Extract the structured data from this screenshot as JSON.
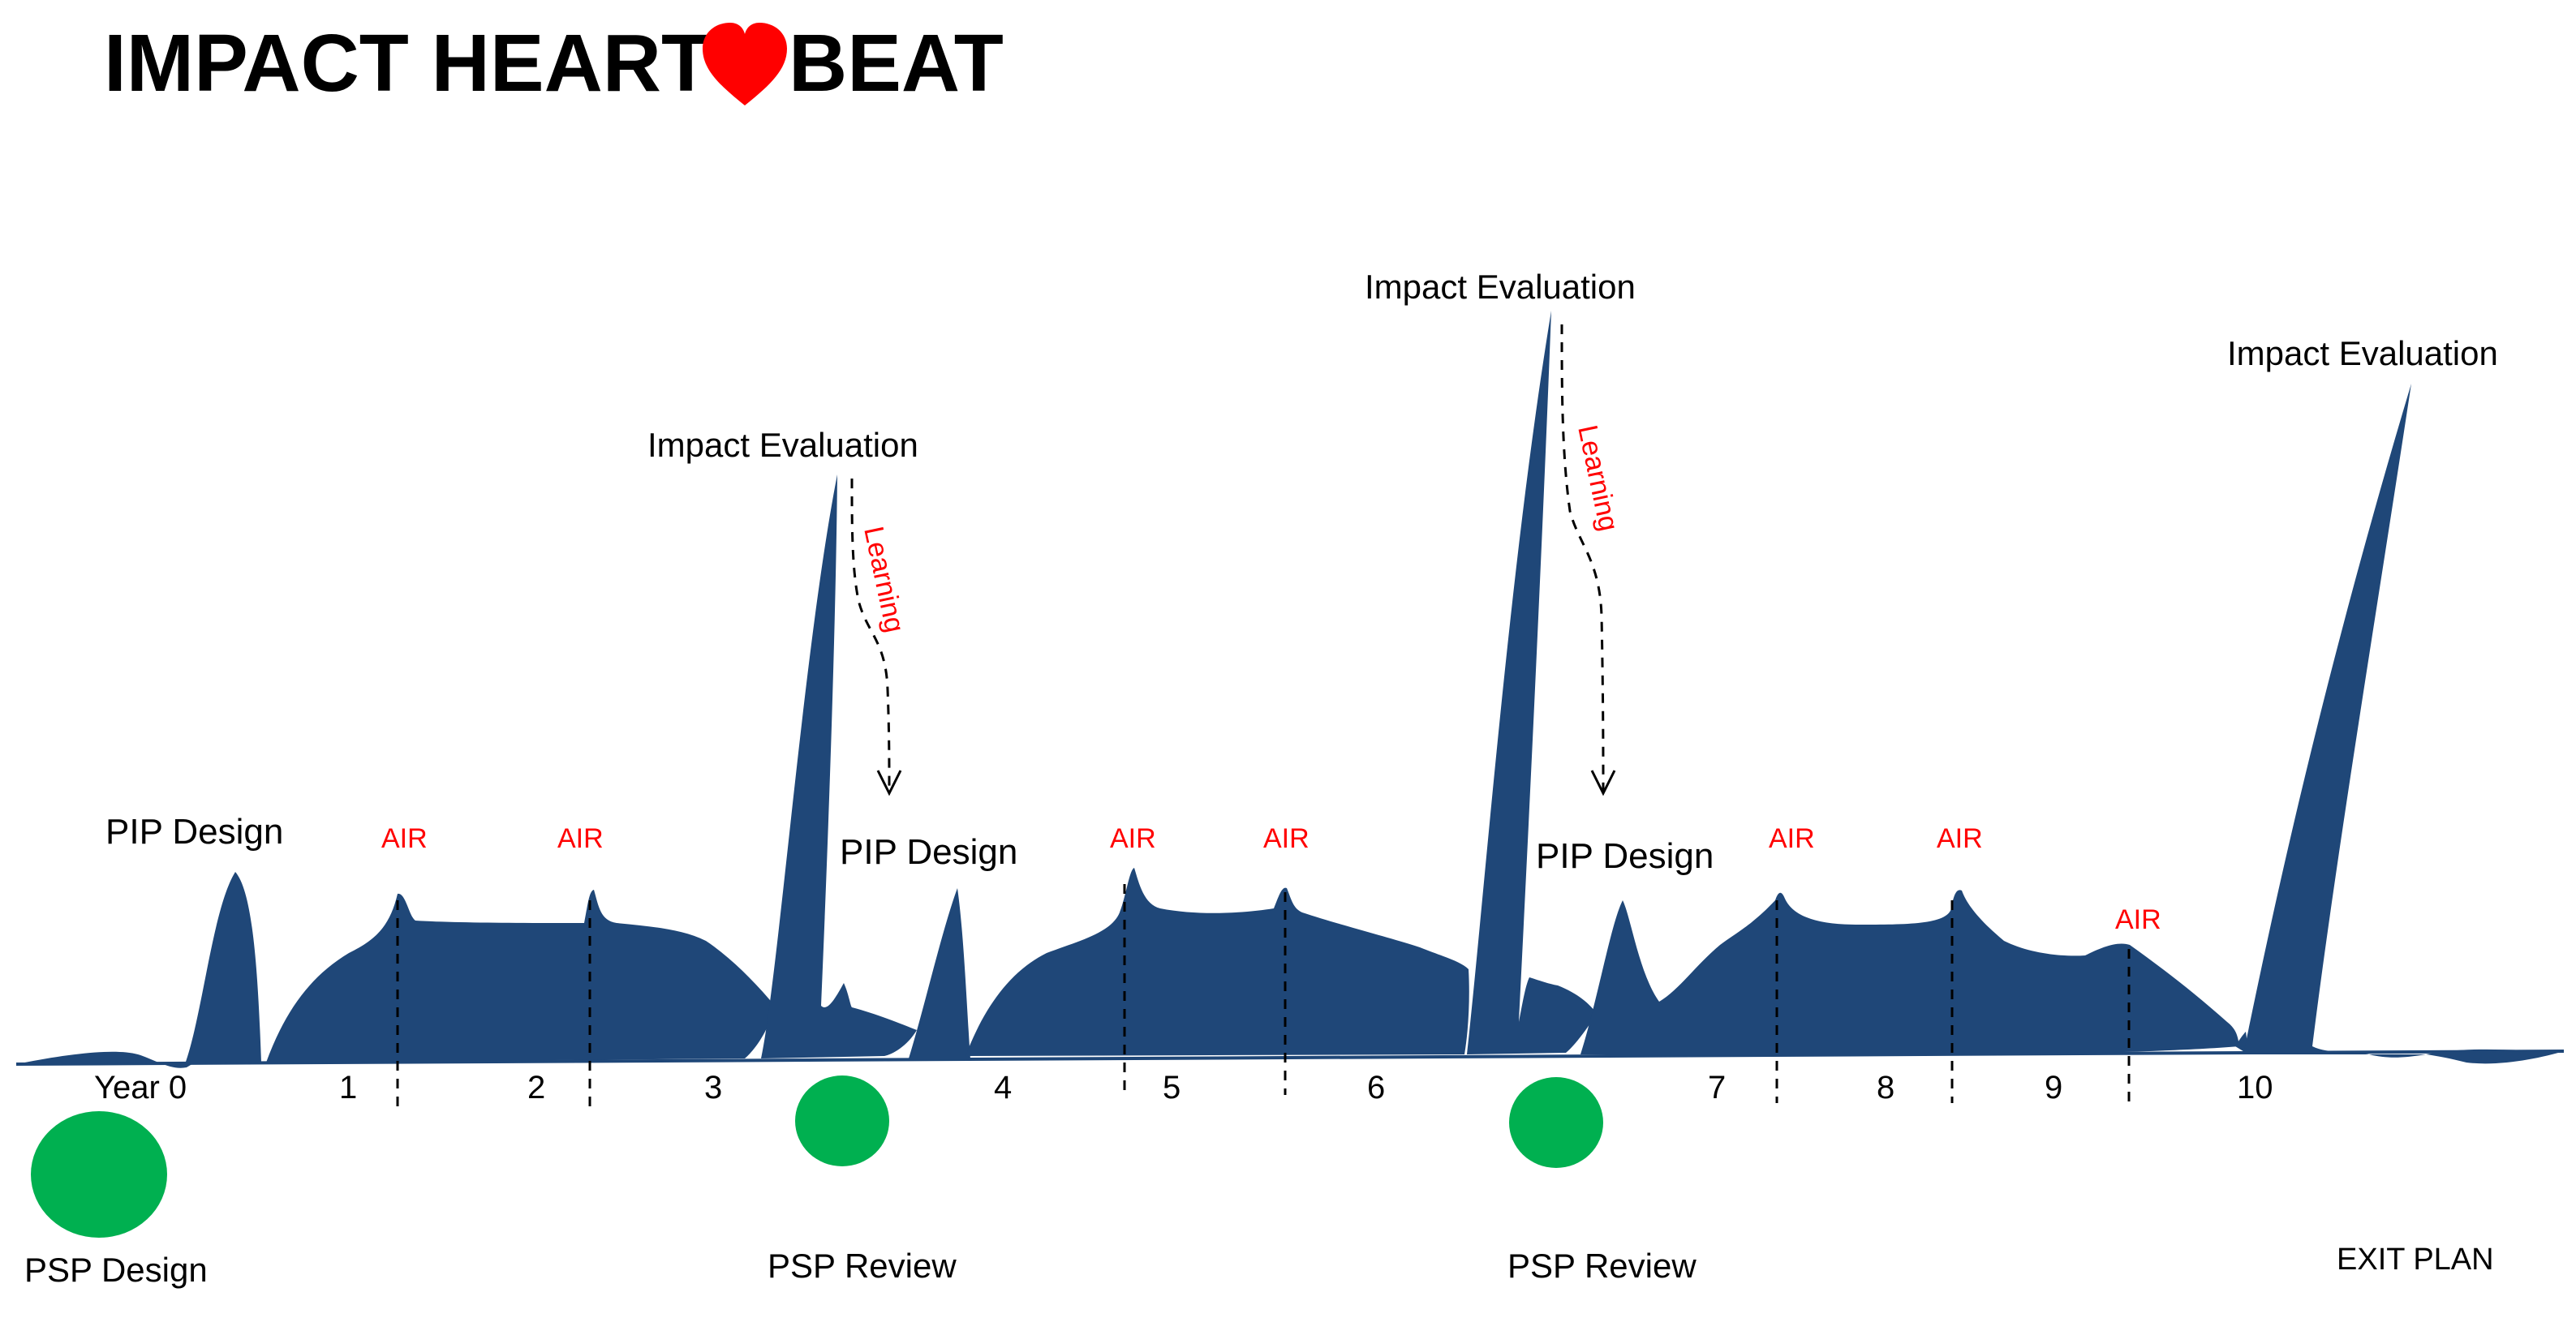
{
  "title": {
    "before": "IMPACT HEART",
    "after": "BEAT",
    "heart_color": "#ff0000"
  },
  "colors": {
    "wave": "#1f4778",
    "circle": "#00b050",
    "red_text": "#ff0000"
  },
  "peaks": [
    {
      "id": "pip-design-1",
      "label": "PIP Design"
    },
    {
      "id": "pip-design-2",
      "label": "PIP Design"
    },
    {
      "id": "pip-design-3",
      "label": "PIP Design"
    },
    {
      "id": "impact-evaluation-1",
      "label": "Impact Evaluation"
    },
    {
      "id": "impact-evaluation-2",
      "label": "Impact Evaluation"
    },
    {
      "id": "impact-evaluation-3",
      "label": "Impact Evaluation"
    }
  ],
  "air_label": "AIR",
  "learning_label": "Learning",
  "years": [
    "Year 0",
    "1",
    "2",
    "3",
    "4",
    "5",
    "6",
    "7",
    "8",
    "9",
    "10"
  ],
  "milestones": [
    {
      "id": "psp-design",
      "label": "PSP Design"
    },
    {
      "id": "psp-review-1",
      "label": "PSP Review"
    },
    {
      "id": "psp-review-2",
      "label": "PSP Review"
    },
    {
      "id": "exit-plan",
      "label": "EXIT PLAN"
    }
  ]
}
